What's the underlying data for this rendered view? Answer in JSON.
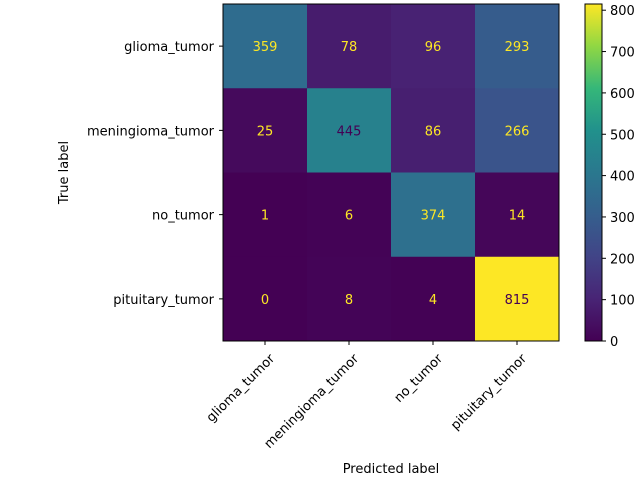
{
  "chart_data": {
    "type": "heatmap",
    "title": "",
    "xlabel": "Predicted label",
    "ylabel": "True label",
    "x_categories": [
      "glioma_tumor",
      "meningioma_tumor",
      "no_tumor",
      "pituitary_tumor"
    ],
    "y_categories": [
      "glioma_tumor",
      "meningioma_tumor",
      "no_tumor",
      "pituitary_tumor"
    ],
    "matrix": [
      [
        359,
        78,
        96,
        293
      ],
      [
        25,
        445,
        86,
        266
      ],
      [
        1,
        6,
        374,
        14
      ],
      [
        0,
        8,
        4,
        815
      ]
    ],
    "colormap": "viridis",
    "colorbar": {
      "range": [
        0,
        815
      ],
      "ticks": [
        0,
        100,
        200,
        300,
        400,
        500,
        600,
        700,
        800
      ]
    },
    "text_colors": {
      "light": "#fde725",
      "dark": "#440154"
    },
    "x_tick_rotation_deg": 45
  }
}
